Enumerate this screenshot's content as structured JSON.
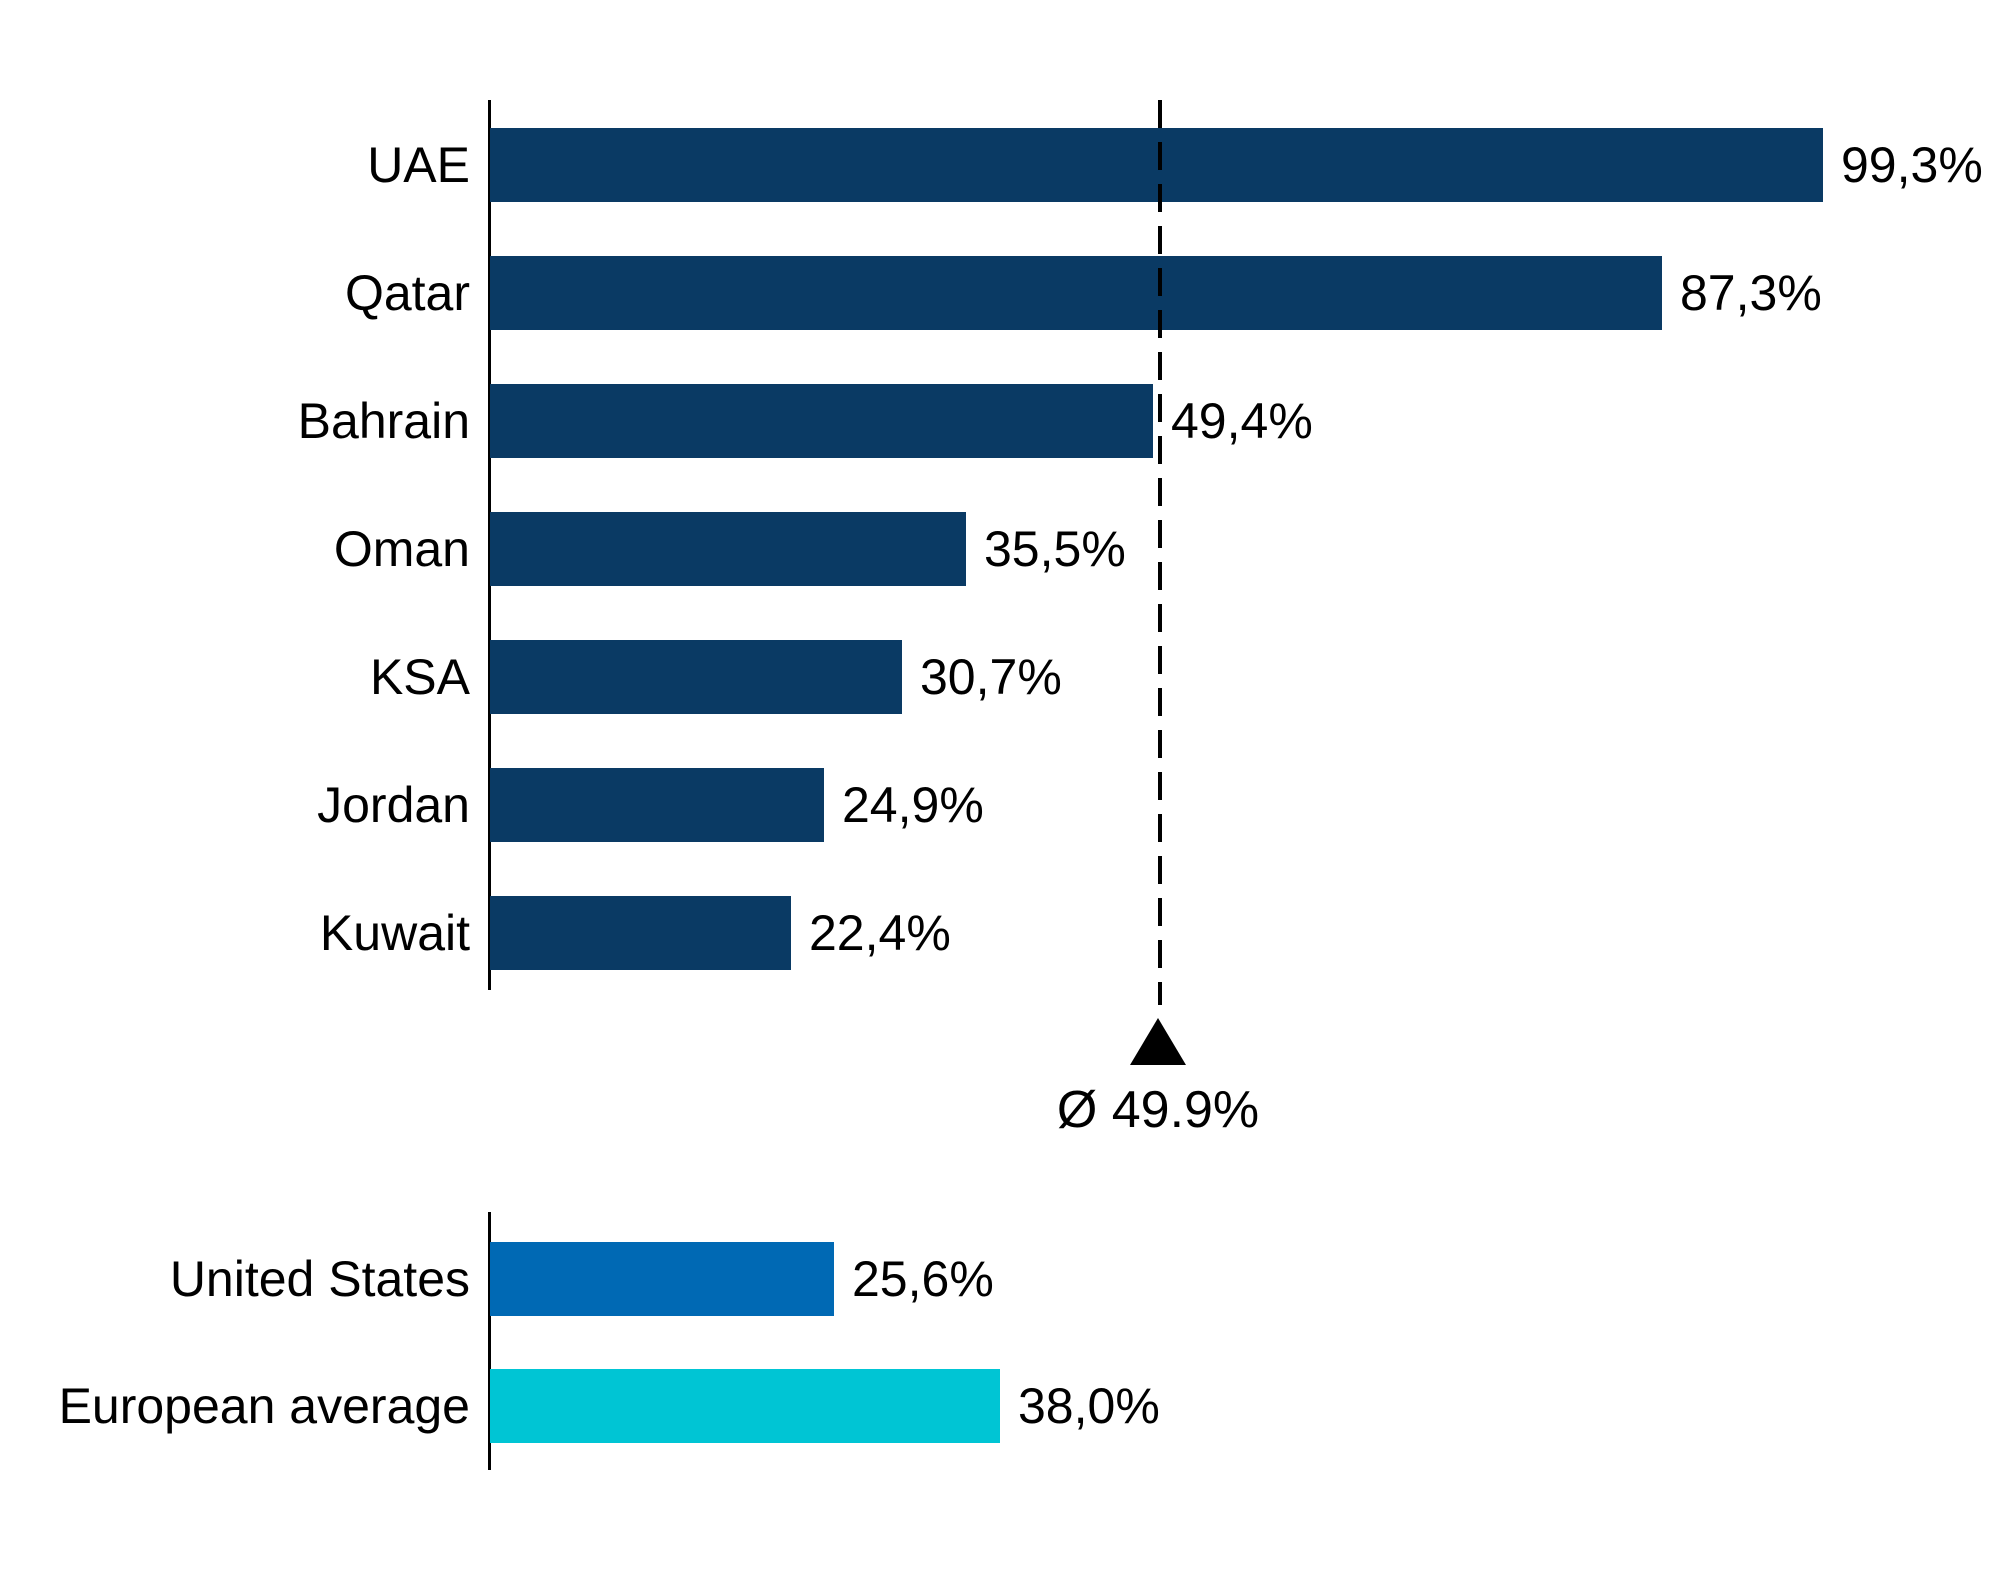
{
  "chart_data": {
    "type": "bar",
    "orientation": "horizontal",
    "title": "",
    "xlabel": "",
    "ylabel": "",
    "unit": "%",
    "value_axis_range": [
      0,
      105
    ],
    "grid": false,
    "legend": "none",
    "decimal_style": "comma",
    "main_series": {
      "name": "countries",
      "color": "#0A3A64",
      "categories": [
        "UAE",
        "Qatar",
        "Bahrain",
        "Oman",
        "KSA",
        "Jordan",
        "Kuwait"
      ],
      "values": [
        99.3,
        87.3,
        49.4,
        35.5,
        30.7,
        24.9,
        22.4
      ],
      "value_labels": [
        "99,3%",
        "87,3%",
        "49,4%",
        "35,5%",
        "30,7%",
        "24,9%",
        "22,4%"
      ]
    },
    "average_marker": {
      "value": 49.9,
      "label": "Ø 49.9%",
      "line_style": "dashed",
      "marker": "triangle-up",
      "color": "#000000"
    },
    "comparison_series": {
      "categories": [
        "United States",
        "European average"
      ],
      "values": [
        25.6,
        38.0
      ],
      "value_labels": [
        "25,6%",
        "38,0%"
      ],
      "colors": [
        "#0069B4",
        "#00C5D4"
      ]
    }
  },
  "layout_colors": {
    "background": "#ffffff",
    "axis": "#000000",
    "text": "#000000"
  }
}
